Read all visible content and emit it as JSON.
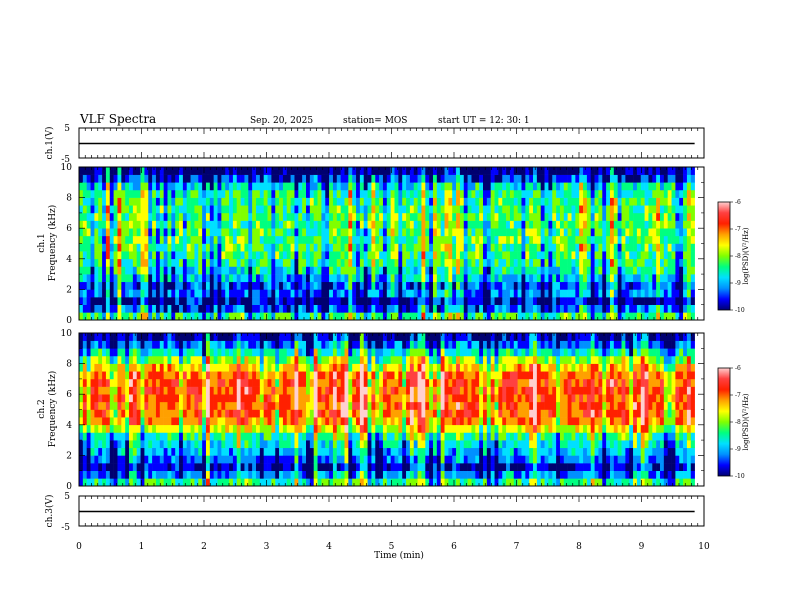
{
  "header": {
    "title": "VLF Spectra",
    "date": "Sep. 20, 2025",
    "station": "station= MOS",
    "start": "start  UT  =   12: 30: 1"
  },
  "colorbar": {
    "label": "log(PSD)(V²/Hz)",
    "ticks": [
      "-6",
      "-7",
      "-8",
      "-9",
      "-10"
    ],
    "colors": [
      "#000070",
      "#0000ff",
      "#0090ff",
      "#00e0ff",
      "#00ff80",
      "#80ff00",
      "#ffff00",
      "#ffa000",
      "#ff2000",
      "#ff4040",
      "#ffd0d0"
    ]
  },
  "chart_data": [
    {
      "type": "line",
      "panel": "ch.1 waveform",
      "ylabel": "ch.1(V)",
      "ylim": [
        -5,
        5
      ],
      "yticks": [
        "5",
        "-5"
      ],
      "x": [
        0,
        9.85
      ],
      "y": [
        0,
        0
      ],
      "xlim": [
        0,
        10
      ]
    },
    {
      "type": "heatmap",
      "panel": "ch.1 spectrogram",
      "ylabel": "ch.1\nFrequency (kHz)",
      "ylim": [
        0,
        10
      ],
      "yticks": [
        "0",
        "2",
        "4",
        "6",
        "8",
        "10"
      ],
      "xlim": [
        0,
        10
      ],
      "data_extent_min": 9.85,
      "freq_khz": [
        0.25,
        0.75,
        1.25,
        1.75,
        2.25,
        2.75,
        3.25,
        3.75,
        4.25,
        4.75,
        5.25,
        5.75,
        6.25,
        6.75,
        7.25,
        7.75,
        8.25,
        8.75,
        9.25,
        9.75
      ],
      "mean_log_psd": [
        -8.3,
        -9.3,
        -9.8,
        -9.2,
        -9.4,
        -8.9,
        -8.6,
        -8.4,
        -8.3,
        -8.2,
        -8.2,
        -8.2,
        -8.2,
        -8.2,
        -8.3,
        -8.3,
        -8.4,
        -8.7,
        -9.5,
        -10.0
      ],
      "variability": 0.55
    },
    {
      "type": "heatmap",
      "panel": "ch.2 spectrogram",
      "ylabel": "ch.2\nFrequency (kHz)",
      "ylim": [
        0,
        10
      ],
      "yticks": [
        "0",
        "2",
        "4",
        "6",
        "8",
        "10"
      ],
      "xlim": [
        0,
        10
      ],
      "data_extent_min": 9.85,
      "freq_khz": [
        0.25,
        0.75,
        1.25,
        1.75,
        2.25,
        2.75,
        3.25,
        3.75,
        4.25,
        4.75,
        5.25,
        5.75,
        6.25,
        6.75,
        7.25,
        7.75,
        8.25,
        8.75,
        9.25,
        9.75
      ],
      "mean_log_psd": [
        -8.4,
        -9.2,
        -9.8,
        -9.3,
        -9.0,
        -8.7,
        -8.4,
        -7.7,
        -7.1,
        -6.9,
        -6.9,
        -6.8,
        -6.8,
        -6.9,
        -7.0,
        -7.4,
        -8.0,
        -8.6,
        -9.3,
        -9.8
      ],
      "variability": 0.45
    },
    {
      "type": "line",
      "panel": "ch.3 waveform",
      "ylabel": "ch.3(V)",
      "ylim": [
        -5,
        5
      ],
      "yticks": [
        "5",
        "-5"
      ],
      "x": [
        0,
        9.85
      ],
      "y": [
        0,
        0
      ],
      "xlim": [
        0,
        10
      ],
      "xlabel": "Time (min)",
      "xticks": [
        "0",
        "1",
        "2",
        "3",
        "4",
        "5",
        "6",
        "7",
        "8",
        "9",
        "10"
      ]
    }
  ]
}
